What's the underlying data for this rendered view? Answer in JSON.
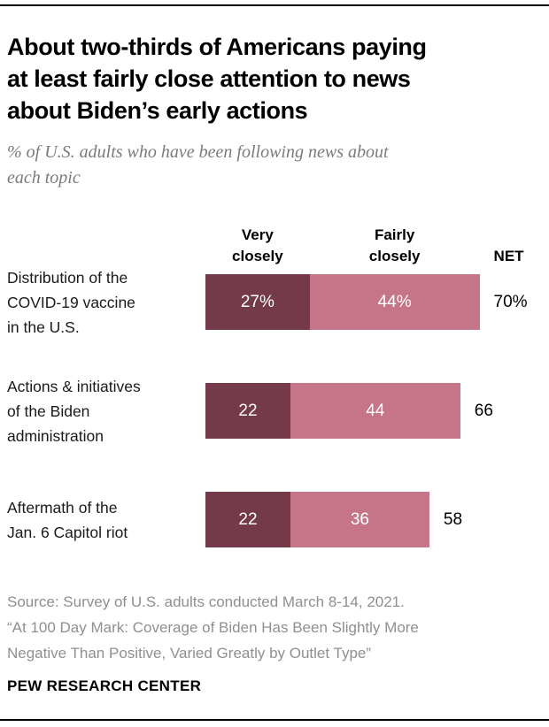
{
  "header": {
    "title": "About two-thirds of Americans paying\nat least fairly close attention to news\nabout Biden’s early actions",
    "subtitle": "% of U.S. adults who have been following news about\neach topic"
  },
  "chart": {
    "col_headers": {
      "very": "Very\nclosely",
      "fairly": "Fairly\nclosely",
      "net": "NET"
    }
  },
  "chart_data": {
    "type": "bar",
    "stacked": true,
    "orientation": "horizontal",
    "unit": "% of U.S. adults",
    "legend_position": "column headers above first bar",
    "series_names": [
      "Very closely",
      "Fairly closely"
    ],
    "colors": {
      "very_closely": "#743a4a",
      "fairly_closely": "#c57587",
      "value_text": "#ffffff",
      "net_text": "#000000"
    },
    "rows": [
      {
        "category": "Distribution of the\nCOVID-19 vaccine\nin the U.S.",
        "very_closely": 27,
        "fairly_closely": 44,
        "net": 70,
        "display": {
          "very": "27%",
          "fairly": "44%",
          "net": "70%"
        }
      },
      {
        "category": "Actions & initiatives\nof the Biden\nadministration",
        "very_closely": 22,
        "fairly_closely": 44,
        "net": 66,
        "display": {
          "very": "22",
          "fairly": "44",
          "net": "66"
        }
      },
      {
        "category": "Aftermath of the\nJan. 6 Capitol riot",
        "very_closely": 22,
        "fairly_closely": 36,
        "net": 58,
        "display": {
          "very": "22",
          "fairly": "36",
          "net": "58"
        }
      }
    ],
    "xlim": [
      0,
      100
    ]
  },
  "footer": {
    "source": "Source: Survey of U.S. adults conducted March 8-14, 2021.\n“At 100 Day Mark: Coverage of Biden Has Been Slightly More\nNegative Than Positive, Varied Greatly by Outlet Type”",
    "brand": "PEW RESEARCH CENTER"
  }
}
